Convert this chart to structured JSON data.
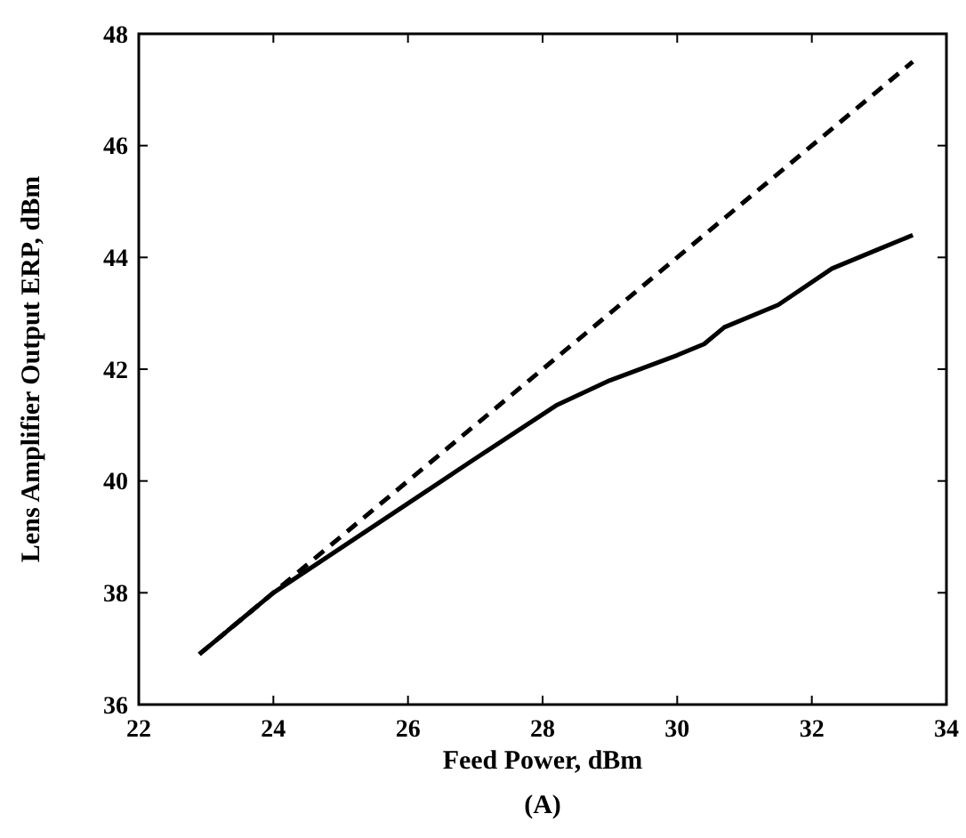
{
  "chart_data": {
    "type": "line",
    "xlabel": "Feed Power, dBm",
    "ylabel": "Lens Amplifier Output ERP, dBm",
    "annotations": [
      "(A)"
    ],
    "xlim": [
      22,
      34
    ],
    "xticks": [
      22,
      24,
      26,
      28,
      30,
      32,
      34
    ],
    "ylim": [
      36,
      48
    ],
    "yticks": [
      36,
      38,
      40,
      42,
      44,
      46,
      48
    ],
    "grid": false,
    "series": [
      {
        "color": "#000000",
        "line_style": "solid",
        "x": [
          22.9,
          23.5,
          24,
          25,
          26,
          27,
          28.2,
          29,
          30,
          30.4,
          30.7,
          31.5,
          32.3,
          33,
          33.5
        ],
        "values": [
          36.9,
          37.5,
          38.0,
          38.8,
          39.6,
          40.4,
          41.35,
          41.8,
          42.25,
          42.45,
          42.75,
          43.15,
          43.8,
          44.15,
          44.4
        ]
      },
      {
        "color": "#000000",
        "line_style": "dashed",
        "x": [
          22.9,
          33.5
        ],
        "values": [
          36.9,
          47.5
        ]
      }
    ]
  }
}
